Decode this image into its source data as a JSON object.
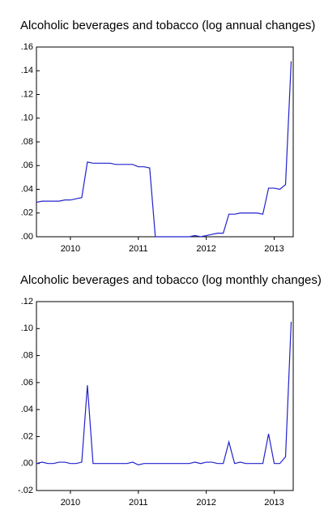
{
  "chart_data": [
    {
      "type": "line",
      "title": "Alcoholic beverages and tobacco (log annual changes)",
      "x": [
        2010,
        2010.083,
        2010.167,
        2010.25,
        2010.333,
        2010.417,
        2010.5,
        2010.583,
        2010.667,
        2010.75,
        2010.833,
        2010.917,
        2011,
        2011.083,
        2011.167,
        2011.25,
        2011.333,
        2011.417,
        2011.5,
        2011.583,
        2011.667,
        2011.75,
        2011.833,
        2011.917,
        2012,
        2012.083,
        2012.167,
        2012.25,
        2012.333,
        2012.417,
        2012.5,
        2012.583,
        2012.667,
        2012.75,
        2012.833,
        2012.917,
        2013,
        2013.083,
        2013.167,
        2013.25,
        2013.333,
        2013.417,
        2013.5,
        2013.583,
        2013.667,
        2013.75
      ],
      "values": [
        0.029,
        0.03,
        0.03,
        0.03,
        0.03,
        0.031,
        0.031,
        0.032,
        0.033,
        0.063,
        0.062,
        0.062,
        0.062,
        0.062,
        0.061,
        0.061,
        0.061,
        0.061,
        0.059,
        0.059,
        0.058,
        0.0,
        0.0,
        0.0,
        0.0,
        0.0,
        0.0,
        0.0,
        0.001,
        0.0,
        0.001,
        0.002,
        0.003,
        0.003,
        0.019,
        0.019,
        0.02,
        0.02,
        0.02,
        0.02,
        0.019,
        0.041,
        0.041,
        0.04,
        0.044,
        0.148
      ],
      "color": "#2222cc",
      "xlim": [
        2010,
        2013.78
      ],
      "xticks": [
        {
          "value": 2010.5,
          "label": "2010"
        },
        {
          "value": 2011.5,
          "label": "2011"
        },
        {
          "value": 2012.5,
          "label": "2012"
        },
        {
          "value": 2013.5,
          "label": "2013"
        }
      ],
      "ylim": [
        0,
        0.16
      ],
      "yticks": [
        {
          "value": 0,
          "label": ".00"
        },
        {
          "value": 0.02,
          "label": ".02"
        },
        {
          "value": 0.04,
          "label": ".04"
        },
        {
          "value": 0.06,
          "label": ".06"
        },
        {
          "value": 0.08,
          "label": ".08"
        },
        {
          "value": 0.1,
          "label": ".10"
        },
        {
          "value": 0.12,
          "label": ".12"
        },
        {
          "value": 0.14,
          "label": ".14"
        },
        {
          "value": 0.16,
          "label": ".16"
        }
      ]
    },
    {
      "type": "line",
      "title": "Alcoholic beverages and tobacco (log monthly changes)",
      "x": [
        2010,
        2010.083,
        2010.167,
        2010.25,
        2010.333,
        2010.417,
        2010.5,
        2010.583,
        2010.667,
        2010.75,
        2010.833,
        2010.917,
        2011,
        2011.083,
        2011.167,
        2011.25,
        2011.333,
        2011.417,
        2011.5,
        2011.583,
        2011.667,
        2011.75,
        2011.833,
        2011.917,
        2012,
        2012.083,
        2012.167,
        2012.25,
        2012.333,
        2012.417,
        2012.5,
        2012.583,
        2012.667,
        2012.75,
        2012.833,
        2012.917,
        2013,
        2013.083,
        2013.167,
        2013.25,
        2013.333,
        2013.417,
        2013.5,
        2013.583,
        2013.667,
        2013.75
      ],
      "values": [
        0.0,
        0.001,
        0.0,
        0.0,
        0.001,
        0.001,
        0.0,
        0.0,
        0.001,
        0.058,
        0.0,
        0.0,
        0.0,
        0.0,
        0.0,
        0.0,
        0.0,
        0.001,
        -0.001,
        0.0,
        0.0,
        0.0,
        0.0,
        0.0,
        0.0,
        0.0,
        0.0,
        0.0,
        0.001,
        0.0,
        0.001,
        0.001,
        0.0,
        0.0,
        0.016,
        0.0,
        0.001,
        0.0,
        0.0,
        0.0,
        0.0,
        0.022,
        0.0,
        0.0,
        0.005,
        0.105
      ],
      "color": "#2222cc",
      "xlim": [
        2010,
        2013.78
      ],
      "xticks": [
        {
          "value": 2010.5,
          "label": "2010"
        },
        {
          "value": 2011.5,
          "label": "2011"
        },
        {
          "value": 2012.5,
          "label": "2012"
        },
        {
          "value": 2013.5,
          "label": "2013"
        }
      ],
      "ylim": [
        -0.02,
        0.12
      ],
      "yticks": [
        {
          "value": -0.02,
          "label": "-.02"
        },
        {
          "value": 0,
          "label": ".00"
        },
        {
          "value": 0.02,
          "label": ".02"
        },
        {
          "value": 0.04,
          "label": ".04"
        },
        {
          "value": 0.06,
          "label": ".06"
        },
        {
          "value": 0.08,
          "label": ".08"
        },
        {
          "value": 0.1,
          "label": ".10"
        },
        {
          "value": 0.12,
          "label": ".12"
        }
      ]
    }
  ]
}
